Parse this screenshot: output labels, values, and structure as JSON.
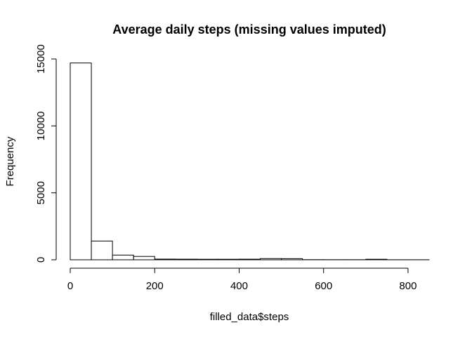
{
  "chart_data": {
    "type": "bar",
    "title": "Average daily steps (missing values imputed)",
    "xlabel": "filled_data$steps",
    "ylabel": "Frequency",
    "bin_width": 50,
    "bins": [
      {
        "start": 0,
        "end": 50,
        "count": 14700
      },
      {
        "start": 50,
        "end": 100,
        "count": 1400
      },
      {
        "start": 100,
        "end": 150,
        "count": 350
      },
      {
        "start": 150,
        "end": 200,
        "count": 250
      },
      {
        "start": 200,
        "end": 250,
        "count": 50
      },
      {
        "start": 250,
        "end": 300,
        "count": 45
      },
      {
        "start": 300,
        "end": 350,
        "count": 40
      },
      {
        "start": 350,
        "end": 400,
        "count": 40
      },
      {
        "start": 400,
        "end": 450,
        "count": 45
      },
      {
        "start": 450,
        "end": 500,
        "count": 90
      },
      {
        "start": 500,
        "end": 550,
        "count": 85
      },
      {
        "start": 550,
        "end": 600,
        "count": 10
      },
      {
        "start": 600,
        "end": 650,
        "count": 8
      },
      {
        "start": 650,
        "end": 700,
        "count": 8
      },
      {
        "start": 700,
        "end": 750,
        "count": 40
      },
      {
        "start": 750,
        "end": 800,
        "count": 5
      },
      {
        "start": 800,
        "end": 850,
        "count": 3
      }
    ],
    "xlim": [
      0,
      850
    ],
    "ylim": [
      0,
      15000
    ],
    "x_ticks": [
      0,
      200,
      400,
      600,
      800
    ],
    "y_ticks": [
      0,
      5000,
      10000,
      15000
    ],
    "grid": false
  }
}
